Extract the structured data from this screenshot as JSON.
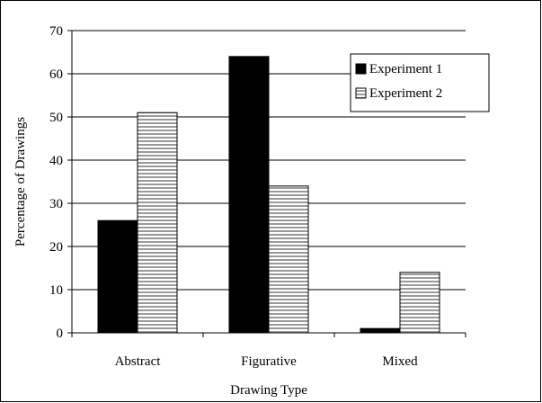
{
  "chart_data": {
    "type": "bar",
    "categories": [
      "Abstract",
      "Figurative",
      "Mixed"
    ],
    "series": [
      {
        "name": "Experiment 1",
        "values": [
          26,
          64,
          1
        ],
        "color": "#000000",
        "pattern": "solid"
      },
      {
        "name": "Experiment 2",
        "values": [
          51,
          34,
          14
        ],
        "color": "#ffffff",
        "pattern": "horizontal-stripes"
      }
    ],
    "title": "",
    "xlabel": "Drawing Type",
    "ylabel": "Percentage of Drawings",
    "ylim": [
      0,
      70
    ],
    "yticks": [
      0,
      10,
      20,
      30,
      40,
      50,
      60,
      70
    ],
    "grid": true,
    "legend_position": "top-right"
  }
}
